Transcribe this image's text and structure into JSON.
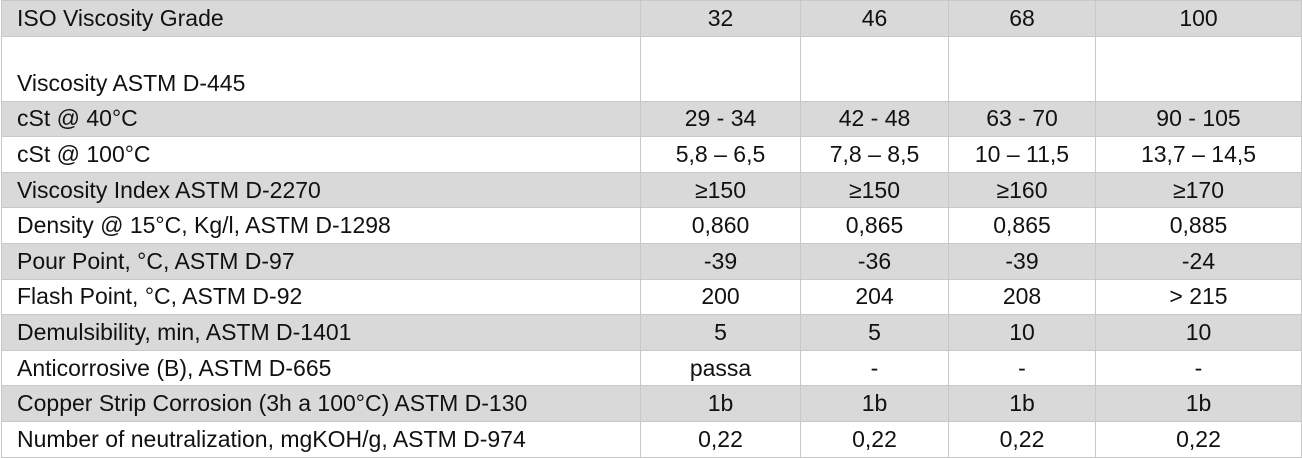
{
  "table": {
    "rows": [
      {
        "label": "ISO Viscosity Grade",
        "values": [
          "32",
          "46",
          "68",
          "100"
        ]
      },
      {
        "label": "Viscosity ASTM D-445"
      },
      {
        "label": "cSt @ 40°C",
        "values": [
          "29 - 34",
          "42 - 48",
          "63 - 70",
          "90 - 105"
        ]
      },
      {
        "label": "cSt @ 100°C",
        "values": [
          "5,8 – 6,5",
          "7,8 – 8,5",
          "10 – 11,5",
          "13,7 – 14,5"
        ]
      },
      {
        "label": "Viscosity Index ASTM D-2270",
        "values": [
          "≥150",
          "≥150",
          "≥160",
          "≥170"
        ]
      },
      {
        "label": "Density @ 15°C, Kg/l, ASTM D-1298",
        "values": [
          "0,860",
          "0,865",
          "0,865",
          "0,885"
        ]
      },
      {
        "label": "Pour Point, °C, ASTM D-97",
        "values": [
          "-39",
          "-36",
          "-39",
          "-24"
        ]
      },
      {
        "label": "Flash Point, °C, ASTM D-92",
        "values": [
          "200",
          "204",
          "208",
          "> 215"
        ]
      },
      {
        "label": "Demulsibility, min, ASTM D-1401",
        "values": [
          "5",
          "5",
          "10",
          "10"
        ]
      },
      {
        "label": "Anticorrosive (B), ASTM D-665",
        "values": [
          "passa",
          "-",
          "-",
          "-"
        ]
      },
      {
        "label": "Copper Strip Corrosion (3h a 100°C) ASTM D-130",
        "values": [
          "1b",
          "1b",
          "1b",
          "1b"
        ]
      },
      {
        "label": "Number of neutralization, mgKOH/g, ASTM D-974",
        "values": [
          "0,22",
          "0,22",
          "0,22",
          "0,22"
        ]
      }
    ]
  }
}
